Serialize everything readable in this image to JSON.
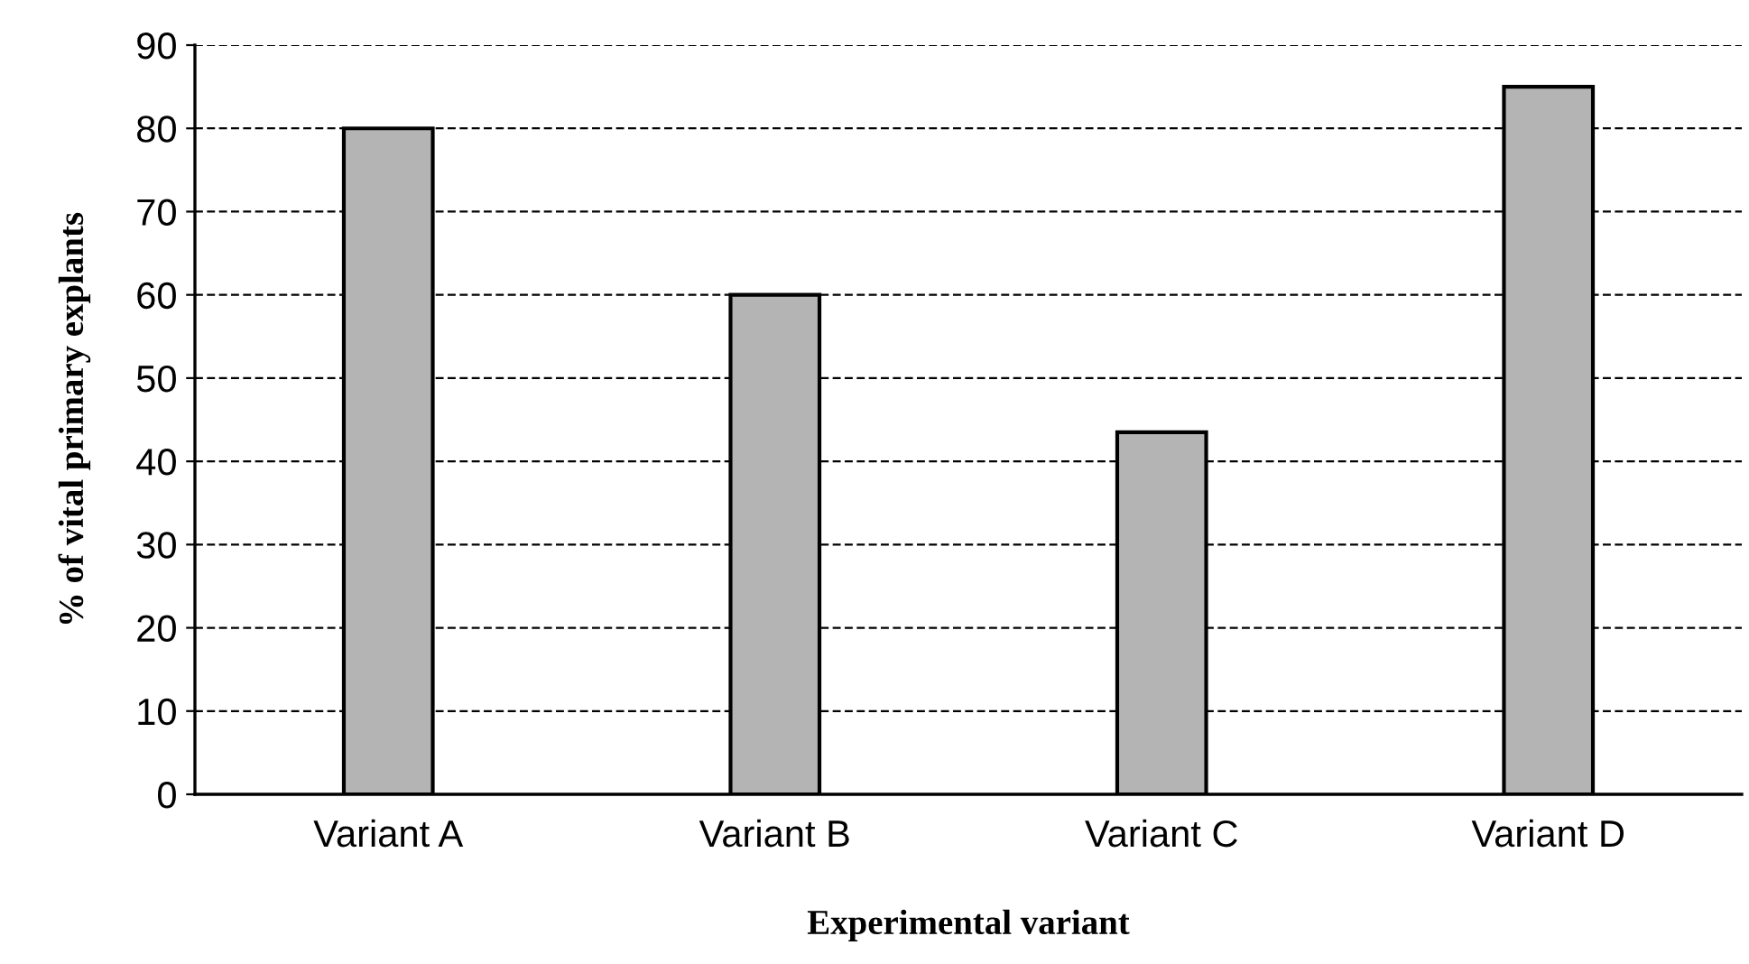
{
  "chart_data": {
    "type": "bar",
    "xlabel": "Experimental variant",
    "ylabel": "% of vital primary explants",
    "categories": [
      "Variant A",
      "Variant B",
      "Variant C",
      "Variant D"
    ],
    "values": [
      80,
      60,
      43.5,
      85
    ],
    "color": "#b4b4b4",
    "ylim": [
      0,
      90
    ],
    "yticks": [
      0,
      10,
      20,
      30,
      40,
      50,
      60,
      70,
      80,
      90
    ],
    "grid": "y",
    "legend": false
  }
}
